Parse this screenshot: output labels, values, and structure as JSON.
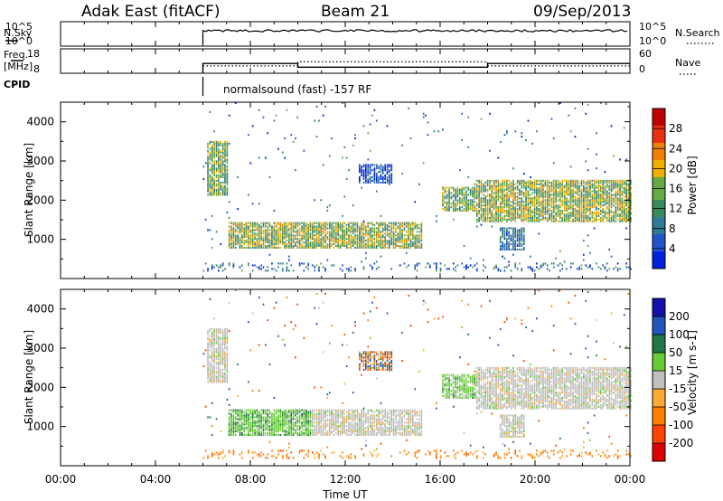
{
  "header": {
    "station": "Adak East (fitACF)",
    "beam": "Beam 21",
    "date": "09/Sep/2013"
  },
  "top_panels": {
    "nsky": {
      "label": "N.Sky",
      "ticks": [
        "10^5",
        "10^0"
      ],
      "right_label": "N.Search",
      "right_ticks": [
        "10^5",
        "10^0"
      ]
    },
    "freq": {
      "label_top": "Freq.",
      "label_bottom": "[MHz]",
      "ticks": [
        "18",
        "8"
      ],
      "right_label": "Nave",
      "right_ticks": [
        "60",
        "0"
      ],
      "freq_segments": [
        {
          "t0": 6.0,
          "t1": 10.0,
          "mhz": 12.0
        },
        {
          "t0": 10.0,
          "t1": 18.0,
          "mhz": 10.5
        },
        {
          "t0": 18.0,
          "t1": 24.0,
          "mhz": 12.0
        }
      ],
      "nave_segments": [
        {
          "t0": 6.0,
          "t1": 10.0,
          "n": 18
        },
        {
          "t0": 10.0,
          "t1": 18.0,
          "n": 28
        },
        {
          "t0": 18.0,
          "t1": 24.0,
          "n": 18
        }
      ]
    },
    "cpid": {
      "label": "CPID",
      "text": "normalsound (fast) -157 RF",
      "start_hour": 6.0
    }
  },
  "chart_data": [
    {
      "type": "heatmap",
      "name": "power",
      "xlabel": "",
      "ylabel": "Slant Range [km]",
      "xlim": [
        0,
        24
      ],
      "ylim": [
        0,
        4500
      ],
      "yticks": [
        1000,
        2000,
        3000,
        4000
      ],
      "colorbar": {
        "label": "Power [dB]",
        "ticks": [
          "4",
          "8",
          "12",
          "16",
          "20",
          "24",
          "28"
        ],
        "range": [
          0,
          32
        ]
      },
      "regions": [
        {
          "t0": 6.1,
          "t1": 7.0,
          "r0": 2100,
          "r1": 3500,
          "level": 0.45
        },
        {
          "t0": 7.0,
          "t1": 15.2,
          "r0": 750,
          "r1": 1400,
          "level": 0.5
        },
        {
          "t0": 7.8,
          "t1": 11.0,
          "r0": 850,
          "r1": 1150,
          "level": 0.75
        },
        {
          "t0": 12.5,
          "t1": 14.0,
          "r0": 2400,
          "r1": 2900,
          "level": 0.15
        },
        {
          "t0": 16.0,
          "t1": 17.5,
          "r0": 1700,
          "r1": 2300,
          "level": 0.45
        },
        {
          "t0": 17.5,
          "t1": 24.0,
          "r0": 1400,
          "r1": 2500,
          "level": 0.5
        },
        {
          "t0": 18.0,
          "t1": 21.0,
          "r0": 1900,
          "r1": 2300,
          "level": 0.8
        },
        {
          "t0": 18.5,
          "t1": 19.5,
          "r0": 700,
          "r1": 1300,
          "level": 0.25
        }
      ]
    },
    {
      "type": "heatmap",
      "name": "velocity",
      "xlabel": "Time UT",
      "ylabel": "Slant Range [km]",
      "xlim": [
        0,
        24
      ],
      "ylim": [
        0,
        4500
      ],
      "yticks": [
        1000,
        2000,
        3000,
        4000
      ],
      "xticks": [
        "00:00",
        "04:00",
        "08:00",
        "12:00",
        "16:00",
        "20:00",
        "00:00"
      ],
      "colorbar": {
        "label": "Velocity [m s-1]",
        "ticks": [
          "200",
          "100",
          "50",
          "15",
          "-15",
          "-50",
          "-100",
          "-200"
        ],
        "range": [
          -200,
          200
        ]
      },
      "regions": [
        {
          "t0": 6.1,
          "t1": 7.0,
          "r0": 2100,
          "r1": 3500,
          "velocity": 0
        },
        {
          "t0": 7.0,
          "t1": 10.5,
          "r0": 750,
          "r1": 1400,
          "velocity": 25
        },
        {
          "t0": 10.5,
          "t1": 15.2,
          "r0": 750,
          "r1": 1400,
          "velocity": 0
        },
        {
          "t0": 16.0,
          "t1": 17.5,
          "r0": 1700,
          "r1": 2300,
          "velocity": 20
        },
        {
          "t0": 17.5,
          "t1": 24.0,
          "r0": 1400,
          "r1": 2500,
          "velocity": 0
        },
        {
          "t0": 18.5,
          "t1": 19.5,
          "r0": 700,
          "r1": 1300,
          "velocity": 0
        }
      ]
    }
  ]
}
